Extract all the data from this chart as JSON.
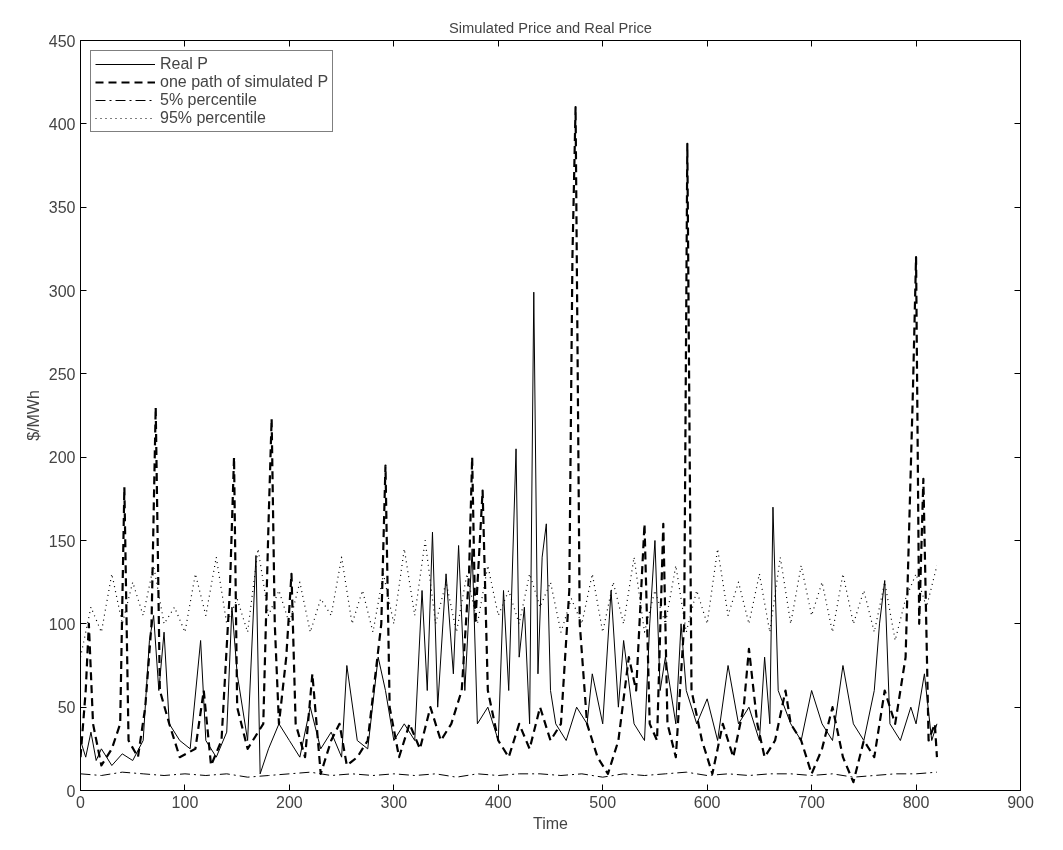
{
  "chart_data": {
    "type": "line",
    "title": "Simulated Price and Real Price",
    "xlabel": "Time",
    "ylabel": "$/MWh",
    "xlim": [
      0,
      900
    ],
    "ylim": [
      0,
      450
    ],
    "xticks": [
      0,
      100,
      200,
      300,
      400,
      500,
      600,
      700,
      800,
      900
    ],
    "yticks": [
      0,
      50,
      100,
      150,
      200,
      250,
      300,
      350,
      400,
      450
    ],
    "grid": false,
    "legend": "top left",
    "series": [
      {
        "name": "Real P",
        "color": "#000000",
        "line_style": "solid",
        "x": [
          0,
          5,
          10,
          15,
          20,
          30,
          40,
          50,
          60,
          66,
          70,
          75,
          80,
          85,
          95,
          105,
          115,
          120,
          130,
          140,
          145,
          150,
          160,
          168,
          172,
          180,
          190,
          200,
          210,
          220,
          230,
          240,
          250,
          255,
          265,
          275,
          285,
          292,
          300,
          310,
          320,
          327,
          332,
          337,
          342,
          350,
          357,
          362,
          368,
          375,
          380,
          390,
          400,
          405,
          410,
          417,
          420,
          425,
          430,
          434,
          438,
          442,
          446,
          450,
          455,
          465,
          475,
          485,
          490,
          500,
          508,
          515,
          520,
          530,
          540,
          545,
          550,
          555,
          560,
          570,
          575,
          580,
          590,
          600,
          610,
          620,
          630,
          640,
          650,
          655,
          660,
          663,
          668,
          680,
          690,
          700,
          710,
          720,
          730,
          740,
          750,
          760,
          765,
          770,
          775,
          785,
          795,
          800,
          808,
          815,
          820
        ],
        "values": [
          30,
          20,
          35,
          18,
          25,
          15,
          22,
          18,
          30,
          90,
          105,
          60,
          95,
          40,
          30,
          25,
          90,
          30,
          20,
          35,
          110,
          70,
          30,
          141,
          10,
          25,
          40,
          30,
          20,
          50,
          25,
          35,
          20,
          75,
          30,
          25,
          80,
          60,
          30,
          40,
          30,
          120,
          60,
          155,
          50,
          130,
          70,
          147,
          60,
          145,
          40,
          50,
          30,
          120,
          60,
          205,
          80,
          110,
          40,
          299,
          70,
          140,
          160,
          60,
          40,
          30,
          50,
          40,
          70,
          40,
          120,
          50,
          90,
          40,
          30,
          100,
          150,
          60,
          80,
          40,
          100,
          60,
          40,
          55,
          30,
          75,
          40,
          50,
          30,
          80,
          40,
          170,
          60,
          40,
          30,
          60,
          40,
          30,
          75,
          40,
          30,
          60,
          100,
          126,
          40,
          30,
          50,
          40,
          70,
          30,
          40
        ]
      },
      {
        "name": "one path of simulated P",
        "color": "#000000",
        "line_style": "dashed",
        "x": [
          0,
          5,
          8,
          12,
          20,
          30,
          38,
          42,
          46,
          55,
          62,
          68,
          72,
          76,
          85,
          95,
          110,
          118,
          125,
          135,
          143,
          147,
          150,
          160,
          175,
          180,
          183,
          186,
          190,
          197,
          202,
          206,
          215,
          222,
          230,
          240,
          248,
          255,
          265,
          275,
          288,
          292,
          296,
          305,
          315,
          325,
          335,
          345,
          355,
          365,
          372,
          375,
          378,
          385,
          390,
          400,
          410,
          420,
          430,
          440,
          450,
          460,
          468,
          471,
          474,
          478,
          485,
          495,
          505,
          515,
          525,
          532,
          540,
          545,
          552,
          558,
          562,
          570,
          578,
          581,
          585,
          595,
          605,
          615,
          625,
          635,
          640,
          648,
          655,
          665,
          675,
          680,
          690,
          700,
          710,
          720,
          730,
          740,
          750,
          760,
          770,
          780,
          790,
          797,
          800,
          803,
          807,
          812,
          818,
          820
        ],
        "values": [
          20,
          60,
          100,
          40,
          15,
          25,
          40,
          182,
          30,
          20,
          50,
          100,
          230,
          60,
          40,
          20,
          25,
          60,
          15,
          30,
          120,
          200,
          50,
          25,
          40,
          160,
          223,
          100,
          40,
          80,
          130,
          40,
          20,
          70,
          10,
          30,
          40,
          15,
          20,
          30,
          100,
          195,
          50,
          20,
          40,
          25,
          50,
          30,
          40,
          60,
          130,
          200,
          100,
          180,
          60,
          30,
          20,
          40,
          25,
          50,
          30,
          40,
          120,
          320,
          410,
          100,
          40,
          20,
          10,
          30,
          80,
          60,
          160,
          40,
          30,
          160,
          40,
          20,
          100,
          388,
          60,
          30,
          10,
          40,
          20,
          50,
          85,
          40,
          20,
          30,
          60,
          40,
          30,
          10,
          25,
          50,
          20,
          5,
          30,
          20,
          60,
          40,
          80,
          240,
          320,
          100,
          187,
          30,
          40,
          20
        ]
      },
      {
        "name": "5% percentile",
        "color": "#000000",
        "line_style": "dashdot",
        "x": [
          0,
          20,
          40,
          60,
          80,
          100,
          120,
          140,
          160,
          180,
          200,
          220,
          240,
          260,
          280,
          300,
          320,
          340,
          360,
          380,
          400,
          420,
          440,
          460,
          480,
          500,
          520,
          540,
          560,
          580,
          600,
          620,
          640,
          660,
          680,
          700,
          720,
          740,
          760,
          780,
          800,
          820
        ],
        "values": [
          10,
          9,
          11,
          10,
          9,
          10,
          9,
          10,
          8,
          9,
          10,
          11,
          9,
          10,
          9,
          10,
          9,
          10,
          8,
          10,
          9,
          10,
          10,
          9,
          10,
          8,
          10,
          9,
          10,
          11,
          9,
          10,
          9,
          10,
          10,
          9,
          10,
          8,
          9,
          10,
          10,
          11
        ]
      },
      {
        "name": "95% percentile",
        "color": "#000000",
        "line_style": "dotted",
        "x": [
          0,
          10,
          20,
          30,
          40,
          50,
          60,
          70,
          80,
          90,
          100,
          110,
          120,
          130,
          140,
          150,
          160,
          170,
          180,
          190,
          200,
          210,
          220,
          230,
          240,
          250,
          260,
          270,
          280,
          290,
          300,
          310,
          320,
          330,
          340,
          350,
          360,
          370,
          380,
          390,
          400,
          410,
          420,
          430,
          440,
          450,
          460,
          470,
          480,
          490,
          500,
          510,
          520,
          530,
          540,
          550,
          560,
          570,
          580,
          590,
          600,
          610,
          620,
          630,
          640,
          650,
          660,
          670,
          680,
          690,
          700,
          710,
          720,
          730,
          740,
          750,
          760,
          770,
          780,
          790,
          800,
          810,
          820
        ],
        "values": [
          80,
          110,
          95,
          130,
          100,
          125,
          105,
          135,
          100,
          110,
          95,
          130,
          105,
          140,
          100,
          115,
          95,
          145,
          105,
          120,
          100,
          125,
          95,
          115,
          105,
          140,
          100,
          120,
          95,
          130,
          100,
          145,
          105,
          150,
          100,
          125,
          95,
          130,
          100,
          135,
          105,
          120,
          100,
          130,
          110,
          125,
          95,
          115,
          100,
          130,
          95,
          125,
          100,
          140,
          95,
          120,
          100,
          135,
          95,
          120,
          100,
          145,
          105,
          125,
          100,
          130,
          95,
          140,
          100,
          135,
          105,
          125,
          95,
          130,
          100,
          120,
          95,
          125,
          90,
          115,
          130,
          110,
          135
        ]
      }
    ]
  }
}
